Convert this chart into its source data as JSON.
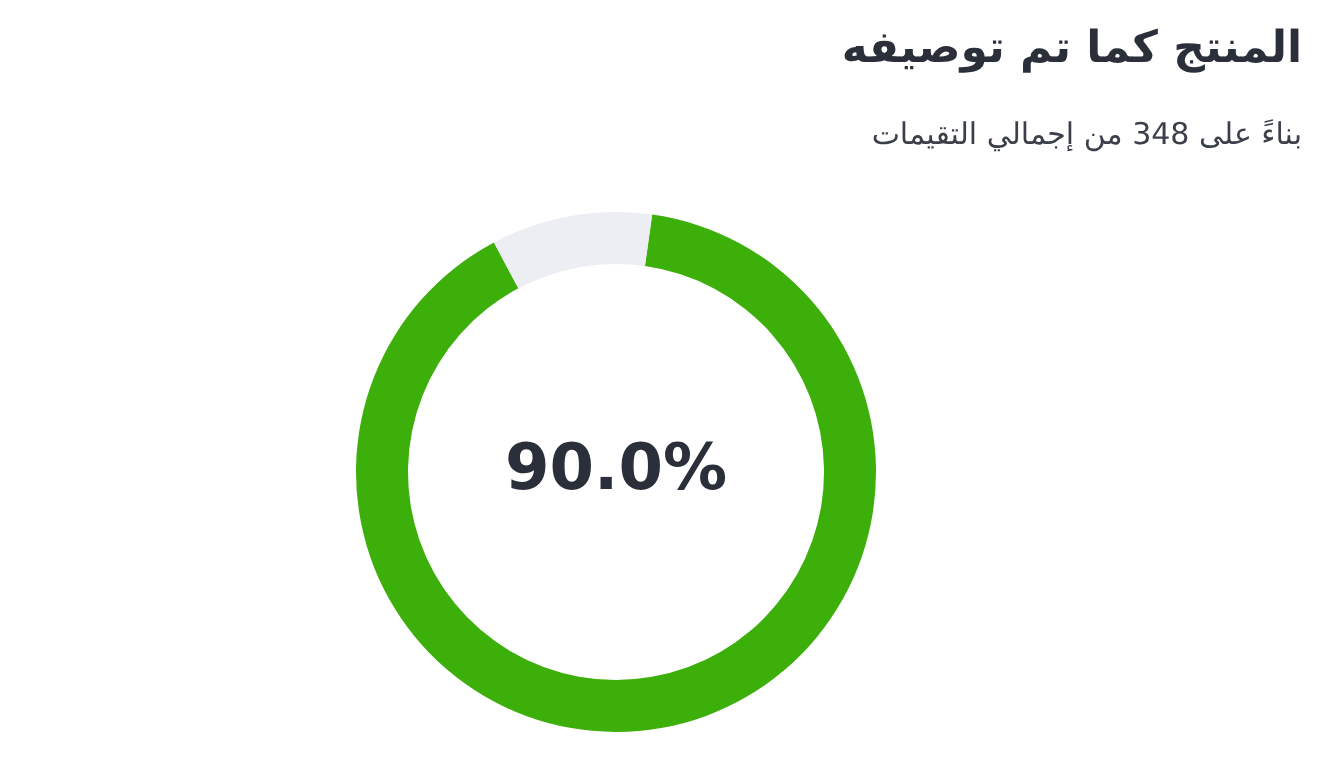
{
  "chart_data": {
    "type": "donut",
    "title": "المنتج كما تم توصيفه",
    "subtitle": "بناءً على 348 من إجمالي التقيمات",
    "categories": [
      null,
      null
    ],
    "values": [
      90,
      10
    ],
    "colors": [
      "#3caf0a",
      "#eceef3"
    ],
    "value_labels": [
      "90.0%",
      null
    ],
    "legend": false
  }
}
